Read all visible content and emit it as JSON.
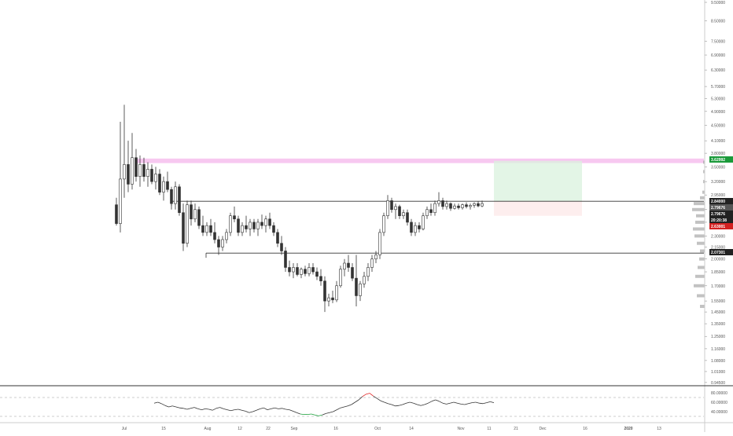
{
  "chart_data": {
    "type": "candlestick",
    "y_axis": {
      "scale": "log",
      "range": [
        0.94,
        9.5
      ],
      "ticks": [
        9.5,
        8.5,
        7.5,
        6.9,
        6.3,
        5.7,
        5.3,
        4.9,
        4.5,
        4.1,
        3.8,
        3.5,
        3.2,
        2.95,
        2.7,
        2.5,
        2.3,
        2.15,
        2.0,
        1.85,
        1.7,
        1.55,
        1.45,
        1.35,
        1.25,
        1.16,
        1.08,
        1.01,
        0.945
      ],
      "tick_labels": [
        "9.50000",
        "8.50000",
        "7.50000",
        "6.90000",
        "6.30000",
        "5.70000",
        "5.30000",
        "4.90000",
        "4.50000",
        "4.10000",
        "3.80000",
        "3.50000",
        "3.20000",
        "2.95000",
        "2.70000",
        "2.50000",
        "2.30000",
        "2.15000",
        "2.00000",
        "1.85000",
        "1.70000",
        "1.55000",
        "1.45000",
        "1.35000",
        "1.25000",
        "1.16000",
        "1.08000",
        "1.01000",
        "0.94500"
      ]
    },
    "x_axis": {
      "ticks": [
        "Jul",
        "15",
        "Aug",
        "12",
        "22",
        "Sep",
        "16",
        "Oct",
        "14",
        "Nov",
        "11",
        "21",
        "Dec",
        "16",
        "2020",
        "13"
      ]
    },
    "candles": [
      {
        "o": 2.78,
        "h": 2.9,
        "l": 2.45,
        "c": 2.48
      },
      {
        "o": 2.48,
        "h": 4.6,
        "l": 2.35,
        "c": 3.25
      },
      {
        "o": 3.25,
        "h": 5.1,
        "l": 2.9,
        "c": 3.55
      },
      {
        "o": 3.55,
        "h": 4.1,
        "l": 3.0,
        "c": 3.15
      },
      {
        "o": 3.15,
        "h": 4.3,
        "l": 3.05,
        "c": 3.7
      },
      {
        "o": 3.7,
        "h": 3.9,
        "l": 3.2,
        "c": 3.3
      },
      {
        "o": 3.3,
        "h": 3.75,
        "l": 3.1,
        "c": 3.55
      },
      {
        "o": 3.55,
        "h": 3.7,
        "l": 3.2,
        "c": 3.3
      },
      {
        "o": 3.3,
        "h": 3.6,
        "l": 3.1,
        "c": 3.45
      },
      {
        "o": 3.45,
        "h": 3.55,
        "l": 3.15,
        "c": 3.2
      },
      {
        "o": 3.2,
        "h": 3.5,
        "l": 3.05,
        "c": 3.35
      },
      {
        "o": 3.35,
        "h": 3.45,
        "l": 2.95,
        "c": 3.0
      },
      {
        "o": 3.0,
        "h": 3.3,
        "l": 2.85,
        "c": 3.2
      },
      {
        "o": 3.2,
        "h": 3.4,
        "l": 3.0,
        "c": 3.05
      },
      {
        "o": 3.05,
        "h": 3.1,
        "l": 2.7,
        "c": 2.8
      },
      {
        "o": 2.8,
        "h": 3.2,
        "l": 2.7,
        "c": 3.1
      },
      {
        "o": 3.1,
        "h": 3.15,
        "l": 2.6,
        "c": 2.65
      },
      {
        "o": 2.65,
        "h": 2.8,
        "l": 2.1,
        "c": 2.2
      },
      {
        "o": 2.2,
        "h": 2.85,
        "l": 2.15,
        "c": 2.78
      },
      {
        "o": 2.78,
        "h": 2.85,
        "l": 2.45,
        "c": 2.55
      },
      {
        "o": 2.55,
        "h": 2.8,
        "l": 2.5,
        "c": 2.7
      },
      {
        "o": 2.7,
        "h": 2.75,
        "l": 2.4,
        "c": 2.45
      },
      {
        "o": 2.45,
        "h": 2.6,
        "l": 2.3,
        "c": 2.35
      },
      {
        "o": 2.35,
        "h": 2.5,
        "l": 2.3,
        "c": 2.45
      },
      {
        "o": 2.45,
        "h": 2.55,
        "l": 2.3,
        "c": 2.35
      },
      {
        "o": 2.35,
        "h": 2.5,
        "l": 2.2,
        "c": 2.25
      },
      {
        "o": 2.25,
        "h": 2.3,
        "l": 2.05,
        "c": 2.15
      },
      {
        "o": 2.15,
        "h": 2.3,
        "l": 2.1,
        "c": 2.25
      },
      {
        "o": 2.25,
        "h": 2.4,
        "l": 2.2,
        "c": 2.35
      },
      {
        "o": 2.35,
        "h": 2.65,
        "l": 2.3,
        "c": 2.6
      },
      {
        "o": 2.6,
        "h": 2.75,
        "l": 2.5,
        "c": 2.55
      },
      {
        "o": 2.55,
        "h": 2.6,
        "l": 2.3,
        "c": 2.35
      },
      {
        "o": 2.35,
        "h": 2.5,
        "l": 2.3,
        "c": 2.45
      },
      {
        "o": 2.45,
        "h": 2.6,
        "l": 2.35,
        "c": 2.4
      },
      {
        "o": 2.4,
        "h": 2.55,
        "l": 2.3,
        "c": 2.5
      },
      {
        "o": 2.5,
        "h": 2.55,
        "l": 2.35,
        "c": 2.4
      },
      {
        "o": 2.4,
        "h": 2.55,
        "l": 2.3,
        "c": 2.5
      },
      {
        "o": 2.5,
        "h": 2.62,
        "l": 2.4,
        "c": 2.45
      },
      {
        "o": 2.45,
        "h": 2.6,
        "l": 2.35,
        "c": 2.55
      },
      {
        "o": 2.55,
        "h": 2.65,
        "l": 2.4,
        "c": 2.45
      },
      {
        "o": 2.45,
        "h": 2.5,
        "l": 2.3,
        "c": 2.35
      },
      {
        "o": 2.35,
        "h": 2.4,
        "l": 2.15,
        "c": 2.2
      },
      {
        "o": 2.2,
        "h": 2.3,
        "l": 2.05,
        "c": 2.1
      },
      {
        "o": 2.1,
        "h": 2.15,
        "l": 1.85,
        "c": 1.9
      },
      {
        "o": 1.9,
        "h": 1.98,
        "l": 1.8,
        "c": 1.85
      },
      {
        "o": 1.85,
        "h": 1.95,
        "l": 1.78,
        "c": 1.9
      },
      {
        "o": 1.9,
        "h": 1.95,
        "l": 1.8,
        "c": 1.82
      },
      {
        "o": 1.82,
        "h": 1.9,
        "l": 1.78,
        "c": 1.88
      },
      {
        "o": 1.88,
        "h": 1.92,
        "l": 1.8,
        "c": 1.83
      },
      {
        "o": 1.83,
        "h": 1.95,
        "l": 1.8,
        "c": 1.9
      },
      {
        "o": 1.9,
        "h": 1.95,
        "l": 1.82,
        "c": 1.85
      },
      {
        "o": 1.85,
        "h": 1.9,
        "l": 1.76,
        "c": 1.8
      },
      {
        "o": 1.8,
        "h": 1.88,
        "l": 1.7,
        "c": 1.75
      },
      {
        "o": 1.75,
        "h": 1.8,
        "l": 1.45,
        "c": 1.55
      },
      {
        "o": 1.55,
        "h": 1.62,
        "l": 1.5,
        "c": 1.58
      },
      {
        "o": 1.58,
        "h": 1.65,
        "l": 1.53,
        "c": 1.56
      },
      {
        "o": 1.56,
        "h": 1.75,
        "l": 1.54,
        "c": 1.7
      },
      {
        "o": 1.7,
        "h": 1.92,
        "l": 1.68,
        "c": 1.88
      },
      {
        "o": 1.88,
        "h": 2.0,
        "l": 1.8,
        "c": 1.95
      },
      {
        "o": 1.95,
        "h": 2.05,
        "l": 1.85,
        "c": 1.9
      },
      {
        "o": 1.9,
        "h": 1.95,
        "l": 1.75,
        "c": 1.78
      },
      {
        "o": 1.78,
        "h": 2.05,
        "l": 1.5,
        "c": 1.6
      },
      {
        "o": 1.6,
        "h": 1.75,
        "l": 1.55,
        "c": 1.72
      },
      {
        "o": 1.72,
        "h": 1.85,
        "l": 1.68,
        "c": 1.8
      },
      {
        "o": 1.8,
        "h": 1.95,
        "l": 1.75,
        "c": 1.9
      },
      {
        "o": 1.9,
        "h": 2.05,
        "l": 1.85,
        "c": 2.0
      },
      {
        "o": 2.0,
        "h": 2.1,
        "l": 1.95,
        "c": 2.05
      },
      {
        "o": 2.05,
        "h": 2.4,
        "l": 2.0,
        "c": 2.35
      },
      {
        "o": 2.35,
        "h": 2.65,
        "l": 2.3,
        "c": 2.6
      },
      {
        "o": 2.6,
        "h": 2.95,
        "l": 2.55,
        "c": 2.85
      },
      {
        "o": 2.85,
        "h": 2.9,
        "l": 2.65,
        "c": 2.7
      },
      {
        "o": 2.7,
        "h": 2.8,
        "l": 2.55,
        "c": 2.75
      },
      {
        "o": 2.75,
        "h": 2.78,
        "l": 2.55,
        "c": 2.6
      },
      {
        "o": 2.6,
        "h": 2.7,
        "l": 2.55,
        "c": 2.65
      },
      {
        "o": 2.65,
        "h": 2.7,
        "l": 2.45,
        "c": 2.5
      },
      {
        "o": 2.5,
        "h": 2.55,
        "l": 2.3,
        "c": 2.35
      },
      {
        "o": 2.35,
        "h": 2.5,
        "l": 2.3,
        "c": 2.45
      },
      {
        "o": 2.45,
        "h": 2.5,
        "l": 2.35,
        "c": 2.4
      },
      {
        "o": 2.4,
        "h": 2.65,
        "l": 2.38,
        "c": 2.6
      },
      {
        "o": 2.6,
        "h": 2.75,
        "l": 2.55,
        "c": 2.7
      },
      {
        "o": 2.7,
        "h": 2.8,
        "l": 2.6,
        "c": 2.65
      },
      {
        "o": 2.65,
        "h": 2.85,
        "l": 2.6,
        "c": 2.8
      },
      {
        "o": 2.8,
        "h": 3.0,
        "l": 2.75,
        "c": 2.85
      },
      {
        "o": 2.85,
        "h": 2.9,
        "l": 2.7,
        "c": 2.75
      },
      {
        "o": 2.75,
        "h": 2.85,
        "l": 2.7,
        "c": 2.8
      },
      {
        "o": 2.8,
        "h": 2.82,
        "l": 2.68,
        "c": 2.72
      },
      {
        "o": 2.72,
        "h": 2.8,
        "l": 2.7,
        "c": 2.76
      },
      {
        "o": 2.76,
        "h": 2.8,
        "l": 2.7,
        "c": 2.73
      },
      {
        "o": 2.73,
        "h": 2.8,
        "l": 2.7,
        "c": 2.78
      },
      {
        "o": 2.78,
        "h": 2.82,
        "l": 2.72,
        "c": 2.75
      },
      {
        "o": 2.75,
        "h": 2.8,
        "l": 2.7,
        "c": 2.77
      },
      {
        "o": 2.77,
        "h": 2.82,
        "l": 2.73,
        "c": 2.8
      },
      {
        "o": 2.8,
        "h": 2.84,
        "l": 2.74,
        "c": 2.76
      },
      {
        "o": 2.76,
        "h": 2.85,
        "l": 2.74,
        "c": 2.8
      }
    ],
    "horizontal_levels": [
      {
        "value": 2.84,
        "label": "2.84000"
      },
      {
        "value": 2.07301,
        "label": "2.07301"
      }
    ],
    "resistance_zone": {
      "low": 3.58,
      "high": 3.68
    },
    "target_zone": {
      "low": 2.84,
      "high": 3.62992
    },
    "stop_zone": {
      "low": 2.6,
      "high": 2.84
    },
    "price_tags": [
      {
        "value": 3.62992,
        "label": "3.62992",
        "color": "#1a9a3a"
      },
      {
        "value": 2.84,
        "label": "2.84000",
        "color": "#222222"
      },
      {
        "value": 2.79676,
        "label": "2.79676",
        "color": "#555555"
      },
      {
        "value": 2.7,
        "label": "2.79676",
        "color": "#222222"
      },
      {
        "value": 2.6,
        "label": "20:20:38",
        "color": "#222222"
      },
      {
        "value": 2.5,
        "label": "2.63001",
        "color": "#d32020"
      },
      {
        "value": 2.07301,
        "label": "2.07301",
        "color": "#222222"
      }
    ],
    "rsi": {
      "upper": 70,
      "lower": 30,
      "ticks": [
        "80.00000",
        "60.00000",
        "40.00000"
      ],
      "values": [
        58,
        60,
        57,
        53,
        50,
        52,
        50,
        48,
        47,
        45,
        47,
        49,
        46,
        44,
        46,
        45,
        43,
        47,
        49,
        46,
        44,
        42,
        44,
        45,
        43,
        41,
        38,
        40,
        43,
        46,
        48,
        44,
        46,
        48,
        46,
        47,
        45,
        44,
        41,
        38,
        35,
        34,
        34,
        35,
        33,
        31,
        33,
        36,
        38,
        40,
        44,
        48,
        50,
        52,
        55,
        60,
        65,
        72,
        77,
        79,
        73,
        68,
        63,
        60,
        57,
        55,
        52,
        53,
        55,
        58,
        60,
        58,
        55,
        53,
        55,
        58,
        62,
        65,
        62,
        58,
        56,
        58,
        60,
        58,
        56,
        55,
        57,
        59,
        60,
        58,
        57,
        59,
        61,
        59
      ]
    },
    "colors": {
      "candle": "#333333",
      "up_candle": "#ffffff",
      "resistance": "#f7c8f0",
      "target": "#d9f2dd",
      "stop": "#fbdede",
      "rsi_line": "#333333",
      "rsi_overbought": "#e02020",
      "rsi_oversold": "#1aa03a"
    }
  }
}
